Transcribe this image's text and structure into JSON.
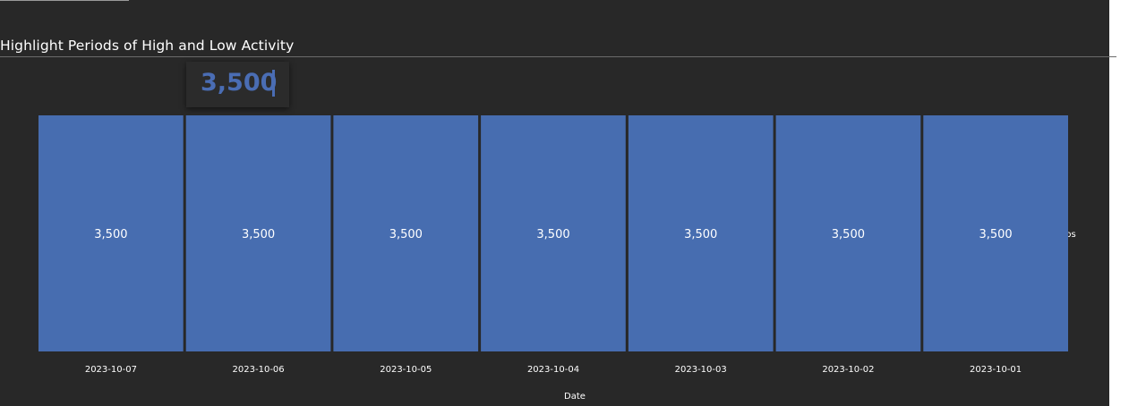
{
  "chart_data": {
    "type": "bar",
    "title": "Highlight Periods of High and Low Activity",
    "xlabel": "Date",
    "ylabel": "",
    "categories": [
      "2023-10-07",
      "2023-10-06",
      "2023-10-05",
      "2023-10-04",
      "2023-10-03",
      "2023-10-02",
      "2023-10-01"
    ],
    "series": [
      {
        "values": [
          3500,
          3500,
          3500,
          3500,
          3500,
          3500,
          3500
        ],
        "data_labels": [
          "3,500",
          "3,500",
          "3,500",
          "3,500",
          "3,500",
          "3,500",
          "3,500"
        ],
        "color": "#476db0"
      }
    ],
    "ylim": [
      0,
      3500
    ],
    "legend": {
      "position": "right",
      "text": "eps"
    },
    "grid": false
  },
  "tooltip": {
    "value": "3,500"
  },
  "colors": {
    "background": "#282828",
    "bar": "#476db0",
    "text": "#ffffff"
  }
}
